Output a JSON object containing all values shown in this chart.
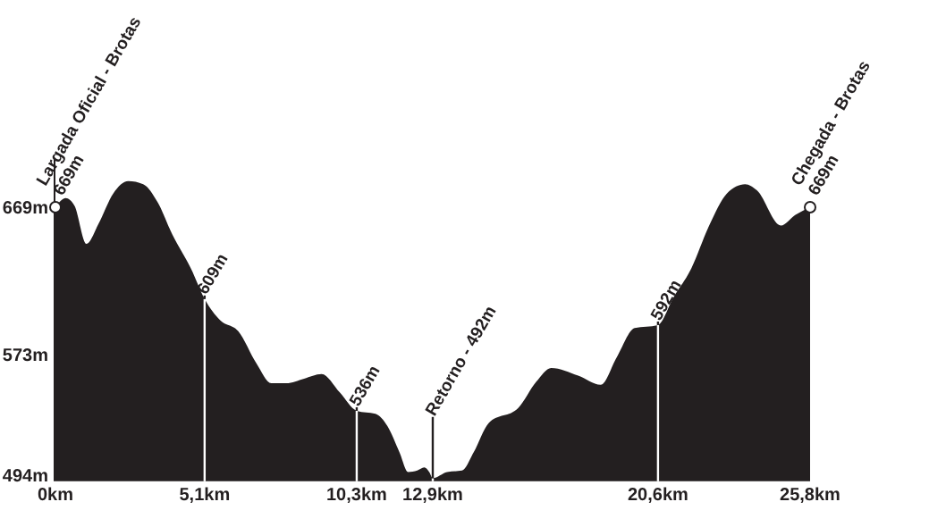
{
  "chart_data": {
    "type": "area",
    "x": [
      0,
      0.35,
      0.65,
      1.06,
      1.47,
      1.98,
      2.49,
      3.0,
      3.5,
      4.0,
      4.63,
      5.1,
      5.64,
      6.25,
      6.87,
      7.38,
      7.89,
      8.5,
      9.1,
      9.72,
      10.3,
      10.94,
      11.35,
      11.76,
      12.06,
      12.37,
      12.61,
      12.78,
      12.9,
      13.39,
      13.9,
      14.3,
      14.81,
      15.83,
      16.44,
      16.95,
      17.87,
      18.64,
      19.19,
      19.8,
      20.6,
      21.13,
      21.74,
      22.35,
      22.96,
      23.58,
      23.98,
      24.8,
      25.3,
      25.8
    ],
    "series": [
      {
        "color": "#231f20",
        "values": [
          669,
          675,
          670,
          645,
          658,
          678,
          686,
          684,
          672,
          651,
          629,
          609,
          595,
          588,
          567,
          554,
          554,
          557,
          560,
          548,
          536,
          534,
          526,
          509,
          496,
          497,
          499,
          496,
          492,
          496,
          497,
          509,
          528,
          538,
          555,
          564,
          559,
          553,
          571,
          590,
          592,
          610,
          629,
          657,
          678,
          684,
          680,
          657,
          664,
          669
        ]
      }
    ],
    "xlim": [
      0,
      25.8
    ],
    "xticks": [
      {
        "value": 0,
        "label": "0km"
      },
      {
        "value": 5.1,
        "label": "5,1km"
      },
      {
        "value": 10.3,
        "label": "10,3km"
      },
      {
        "value": 12.9,
        "label": "12,9km"
      },
      {
        "value": 20.6,
        "label": "20,6km"
      },
      {
        "value": 25.8,
        "label": "25,8km"
      }
    ],
    "ylim": [
      490,
      700
    ],
    "yticks": [
      {
        "value": 494,
        "label": "494m"
      },
      {
        "value": 573,
        "label": "573m"
      },
      {
        "value": 669,
        "label": "669m"
      }
    ],
    "annotations": [
      {
        "text": "Largada Oficial - Brotas\n669m",
        "x": 0,
        "y": 669
      },
      {
        "text": "609m",
        "x": 5.1,
        "y": 609
      },
      {
        "text": "536m",
        "x": 10.3,
        "y": 536
      },
      {
        "text": "Retorno - 492m",
        "x": 12.9,
        "y": 492
      },
      {
        "text": "592m",
        "x": 20.6,
        "y": 592
      },
      {
        "text": "Chegada - Brotas\n669m",
        "x": 25.8,
        "y": 669
      }
    ],
    "grid": false
  }
}
